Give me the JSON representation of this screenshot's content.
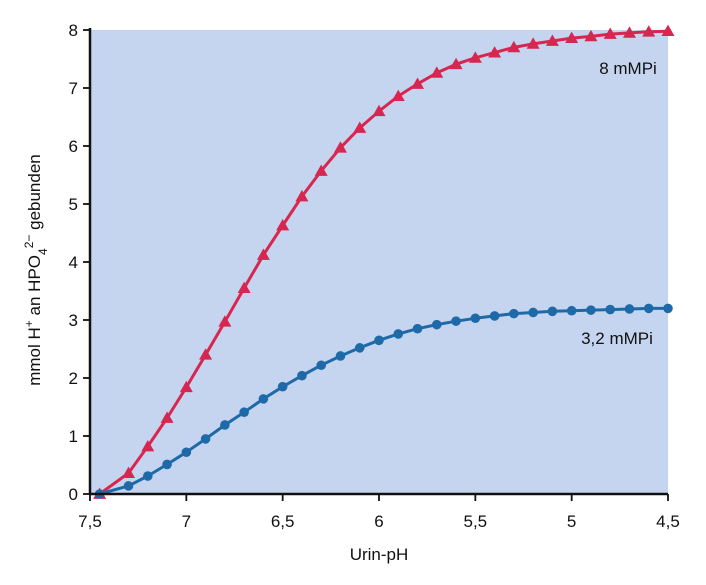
{
  "chart_data": {
    "type": "line",
    "xlabel": "Urin-pH",
    "ylabel_parts": {
      "base": "mmol H",
      "sup1": "+",
      "mid": " an HPO",
      "sub": "4",
      "sup2": "2−",
      "end": " gebunden"
    },
    "x_reversed": true,
    "xlim": [
      7.5,
      4.5
    ],
    "ylim": [
      0,
      8
    ],
    "xticks": [
      7.5,
      7,
      6.5,
      6,
      5.5,
      5,
      4.5
    ],
    "xtick_labels": [
      "7,5",
      "7",
      "6,5",
      "6",
      "5,5",
      "5",
      "4,5"
    ],
    "yticks": [
      0,
      1,
      2,
      3,
      4,
      5,
      6,
      7,
      8
    ],
    "ytick_labels": [
      "0",
      "1",
      "2",
      "3",
      "4",
      "5",
      "6",
      "7",
      "8"
    ],
    "grid": false,
    "background_color": "#c5d5ef",
    "series": [
      {
        "name": "8 mMPi",
        "color": "#d7264f",
        "marker": "triangle",
        "x": [
          7.45,
          7.3,
          7.2,
          7.1,
          7.0,
          6.9,
          6.8,
          6.7,
          6.6,
          6.5,
          6.4,
          6.3,
          6.2,
          6.1,
          6.0,
          5.9,
          5.8,
          5.7,
          5.6,
          5.5,
          5.4,
          5.3,
          5.2,
          5.1,
          5.0,
          4.9,
          4.8,
          4.7,
          4.6,
          4.5
        ],
        "y": [
          0.0,
          0.36,
          0.82,
          1.31,
          1.84,
          2.4,
          2.97,
          3.55,
          4.12,
          4.63,
          5.13,
          5.57,
          5.97,
          6.31,
          6.6,
          6.86,
          7.07,
          7.26,
          7.41,
          7.52,
          7.61,
          7.7,
          7.76,
          7.81,
          7.86,
          7.89,
          7.93,
          7.95,
          7.97,
          7.98
        ]
      },
      {
        "name": "3,2 mMPi",
        "color": "#1e6aa8",
        "marker": "circle",
        "x": [
          7.45,
          7.3,
          7.2,
          7.1,
          7.0,
          6.9,
          6.8,
          6.7,
          6.6,
          6.5,
          6.4,
          6.3,
          6.2,
          6.1,
          6.0,
          5.9,
          5.8,
          5.7,
          5.6,
          5.5,
          5.4,
          5.3,
          5.2,
          5.1,
          5.0,
          4.9,
          4.8,
          4.7,
          4.6,
          4.5
        ],
        "y": [
          0.0,
          0.14,
          0.31,
          0.51,
          0.72,
          0.95,
          1.19,
          1.41,
          1.64,
          1.85,
          2.04,
          2.22,
          2.38,
          2.52,
          2.65,
          2.76,
          2.85,
          2.92,
          2.98,
          3.03,
          3.07,
          3.11,
          3.13,
          3.15,
          3.16,
          3.17,
          3.18,
          3.19,
          3.2,
          3.2
        ]
      }
    ]
  }
}
